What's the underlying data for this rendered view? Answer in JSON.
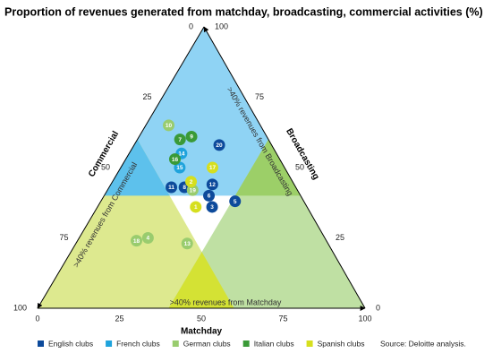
{
  "chart_data": {
    "type": "ternary",
    "title": "Proportion of revenues generated from matchday, broadcasting, commercial activities (%)",
    "axes": {
      "matchday": {
        "title": "Matchday",
        "ticks": [
          0,
          25,
          50,
          75,
          100
        ]
      },
      "commercial": {
        "title": "Commercial",
        "ticks": [
          0,
          25,
          50,
          75,
          100
        ]
      },
      "broadcasting": {
        "title": "Broadcasting",
        "ticks": [
          0,
          25,
          50,
          75,
          100
        ]
      }
    },
    "region_threshold": 40,
    "regions": {
      "broadcasting": {
        "label": ">40% revenues from Broadcasting",
        "color": "#8fd3f4"
      },
      "commercial": {
        "label": ">40% revenues from Commercial",
        "color": "#dde98f"
      },
      "matchday": {
        "label": ">40% revenues from Matchday",
        "color": "#bfe0a3"
      },
      "broadcasting_commercial": {
        "color": "#5dc1ec"
      },
      "broadcasting_matchday": {
        "color": "#9ccf68"
      },
      "commercial_matchday": {
        "color": "#d4e234"
      }
    },
    "series": [
      {
        "name": "English clubs",
        "color": "#0d4a9b",
        "points": [
          {
            "label": "20",
            "matchday": 26,
            "commercial": 16,
            "broadcasting": 58
          },
          {
            "label": "11",
            "matchday": 19,
            "commercial": 38,
            "broadcasting": 43
          },
          {
            "label": "8",
            "matchday": 23,
            "commercial": 34,
            "broadcasting": 43
          },
          {
            "label": "12",
            "matchday": 31,
            "commercial": 25,
            "broadcasting": 44
          },
          {
            "label": "6",
            "matchday": 32,
            "commercial": 28,
            "broadcasting": 40
          },
          {
            "label": "5",
            "matchday": 41,
            "commercial": 21,
            "broadcasting": 38
          },
          {
            "label": "3",
            "matchday": 35,
            "commercial": 29,
            "broadcasting": 36
          }
        ]
      },
      {
        "name": "French clubs",
        "color": "#1fa3dc",
        "points": [
          {
            "label": "14",
            "matchday": 16,
            "commercial": 29,
            "broadcasting": 55
          },
          {
            "label": "15",
            "matchday": 18,
            "commercial": 32,
            "broadcasting": 50
          }
        ]
      },
      {
        "name": "German clubs",
        "color": "#99cc6e",
        "points": [
          {
            "label": "10",
            "matchday": 7,
            "commercial": 28,
            "broadcasting": 65
          },
          {
            "label": "19",
            "matchday": 26,
            "commercial": 32,
            "broadcasting": 42
          },
          {
            "label": "4",
            "matchday": 21,
            "commercial": 54,
            "broadcasting": 25
          },
          {
            "label": "18",
            "matchday": 18,
            "commercial": 58,
            "broadcasting": 24
          },
          {
            "label": "13",
            "matchday": 34,
            "commercial": 43,
            "broadcasting": 23
          }
        ]
      },
      {
        "name": "Italian clubs",
        "color": "#3a9a37",
        "points": [
          {
            "label": "9",
            "matchday": 16,
            "commercial": 23,
            "broadcasting": 61
          },
          {
            "label": "7",
            "matchday": 13,
            "commercial": 27,
            "broadcasting": 60
          },
          {
            "label": "16",
            "matchday": 15,
            "commercial": 32,
            "broadcasting": 53
          }
        ]
      },
      {
        "name": "Spanish clubs",
        "color": "#d6df1e",
        "points": [
          {
            "label": "17",
            "matchday": 28,
            "commercial": 22,
            "broadcasting": 50
          },
          {
            "label": "2",
            "matchday": 24,
            "commercial": 31,
            "broadcasting": 45
          },
          {
            "label": "1",
            "matchday": 30,
            "commercial": 34,
            "broadcasting": 36
          }
        ]
      }
    ],
    "source": "Source: Deloitte analysis."
  }
}
